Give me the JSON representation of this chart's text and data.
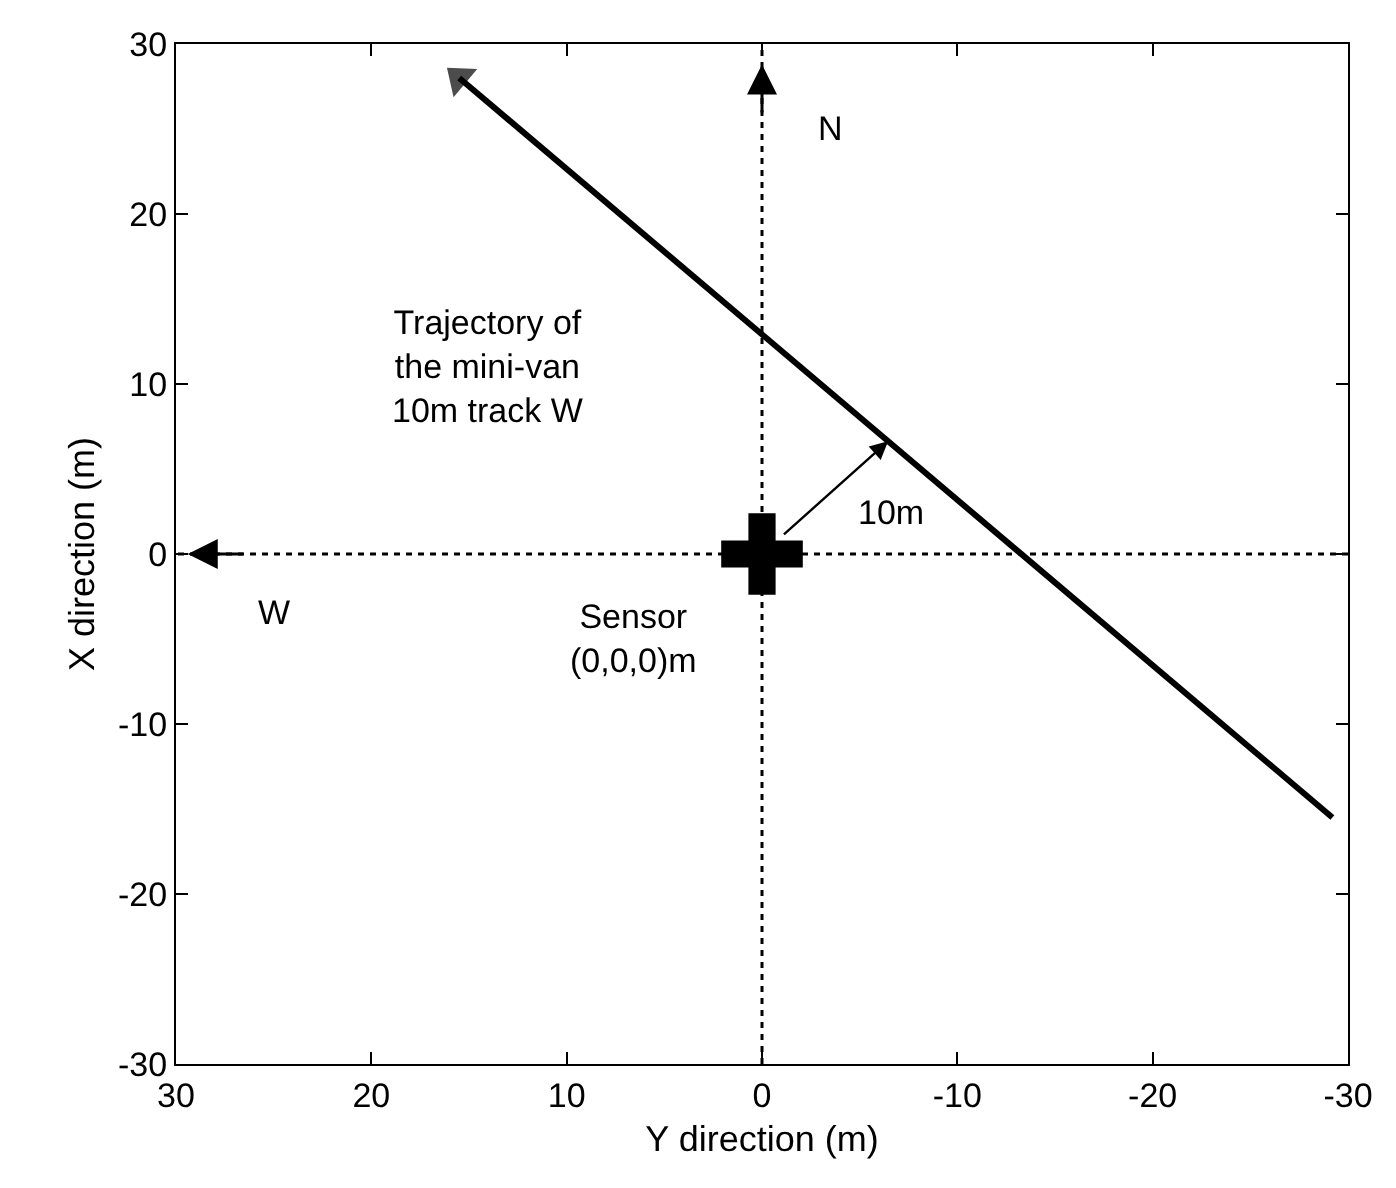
{
  "chart_data": {
    "type": "line",
    "xlabel": "Y direction (m)",
    "ylabel": "X direction (m)",
    "xlim": [
      30,
      -30
    ],
    "ylim": [
      -30,
      30
    ],
    "xticks": [
      30,
      20,
      10,
      0,
      -10,
      -20,
      -30
    ],
    "yticks": [
      -30,
      -20,
      -10,
      0,
      10,
      20,
      30
    ],
    "series": [
      {
        "color": "#000000",
        "line_style": "solid",
        "x": [
          -29.2,
          15.5
        ],
        "values": [
          -15.5,
          28
        ]
      },
      {
        "type": "scatter",
        "color": "#000000",
        "marker": "cross",
        "x": [
          0
        ],
        "values": [
          0
        ]
      }
    ],
    "ref_lines": [
      {
        "axis": "y",
        "value": 0,
        "label": "W",
        "color": "#000000",
        "line_style": "dotted"
      },
      {
        "axis": "x",
        "value": 0,
        "label": "N",
        "color": "#000000",
        "line_style": "dotted"
      }
    ],
    "annotations": [
      "Trajectory of\nthe mini-van\n10m track W",
      "10m",
      "Sensor\n(0,0,0)m"
    ]
  }
}
